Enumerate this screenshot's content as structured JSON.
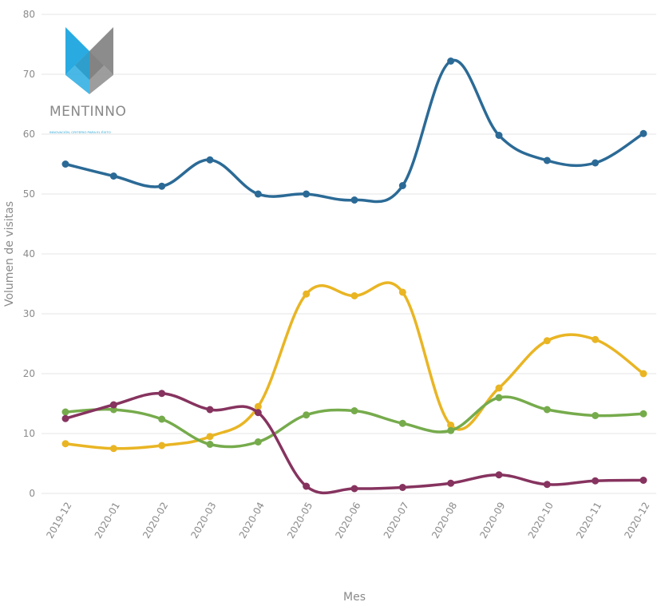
{
  "logo": {
    "name": "MENTINNO",
    "tagline": "INNOVACIÓN, CRITERIO PARA EL ÉXITO"
  },
  "chart_data": {
    "type": "line",
    "xlabel": "Mes",
    "ylabel": "Volumen de visitas",
    "ylim": [
      0,
      80
    ],
    "yticks": [
      0,
      10,
      20,
      30,
      40,
      50,
      60,
      70,
      80
    ],
    "grid": true,
    "categories": [
      "2019-12",
      "2020-01",
      "2020-02",
      "2020-03",
      "2020-04",
      "2020-05",
      "2020-06",
      "2020-07",
      "2020-08",
      "2020-09",
      "2020-10",
      "2020-11",
      "2020-12"
    ],
    "series": [
      {
        "color": "#2b6a96",
        "values": [
          55,
          53,
          51.3,
          55.7,
          50,
          50,
          49,
          51.4,
          72.2,
          59.8,
          55.6,
          55.2,
          60.1
        ]
      },
      {
        "color": "#e9b524",
        "values": [
          8.3,
          7.5,
          8,
          9.5,
          14.5,
          33.3,
          33,
          33.6,
          11.4,
          17.6,
          25.5,
          25.7,
          20
        ]
      },
      {
        "color": "#76ab4c",
        "values": [
          13.6,
          14,
          12.4,
          8.2,
          8.6,
          13.1,
          13.8,
          11.7,
          10.5,
          16,
          14,
          13,
          13.3
        ]
      },
      {
        "color": "#86335f",
        "values": [
          12.5,
          14.8,
          16.7,
          14,
          13.5,
          1.2,
          0.8,
          1,
          1.7,
          3.1,
          1.5,
          2.1,
          2.2
        ]
      }
    ]
  }
}
